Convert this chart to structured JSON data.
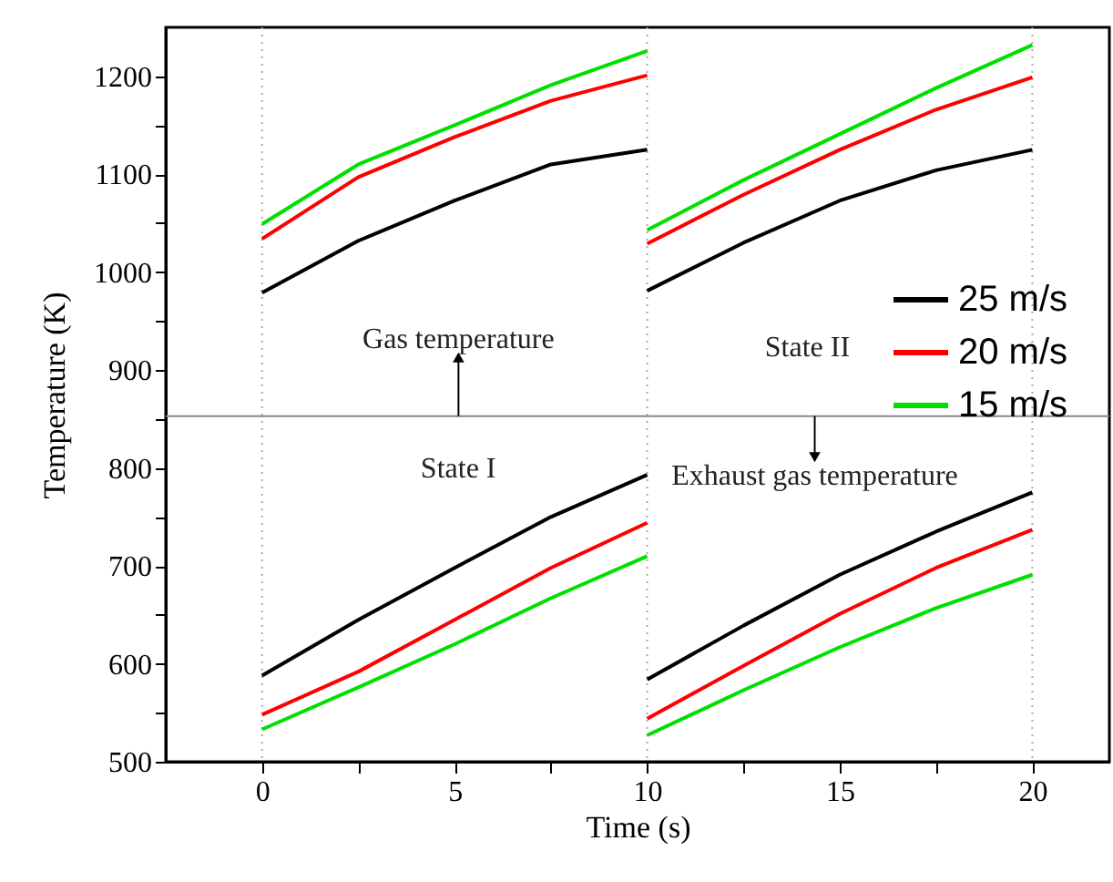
{
  "chart_data": {
    "type": "line",
    "xlabel": "Time (s)",
    "ylabel": "Temperature (K)",
    "xlim": [
      -2.5,
      22
    ],
    "ylim": [
      500,
      1250
    ],
    "xticks": [
      0,
      {
        "value": 2.5,
        "label": null
      },
      5,
      {
        "value": 7.5,
        "label": null
      },
      10,
      {
        "value": 12.5,
        "label": null
      },
      15,
      {
        "value": 17.5,
        "label": null
      },
      20
    ],
    "yticks": [
      500,
      {
        "value": 550,
        "label": null
      },
      600,
      {
        "value": 650,
        "label": null
      },
      700,
      {
        "value": 750,
        "label": null
      },
      800,
      {
        "value": 850,
        "label": null
      },
      900,
      {
        "value": 950,
        "label": null
      },
      1000,
      {
        "value": 1050,
        "label": null
      },
      1100,
      {
        "value": 1150,
        "label": null
      },
      1200
    ],
    "grid": false,
    "legend": "right",
    "series": [
      {
        "name": "25 m/s",
        "color": "#000000",
        "x": [
          0,
          2.5,
          5,
          7.5,
          10,
          null,
          10,
          12.5,
          15,
          17.5,
          20
        ],
        "values": [
          979,
          1032,
          1073,
          1110,
          1125,
          null,
          981,
          1030,
          1073,
          1104,
          1125
        ]
      },
      {
        "name": "20 m/s",
        "color": "#ff0000",
        "x": [
          0,
          2.5,
          5,
          7.5,
          10,
          null,
          10,
          12.5,
          15,
          17.5,
          20
        ],
        "values": [
          1034,
          1097,
          1138,
          1175,
          1201,
          null,
          1029,
          1079,
          1125,
          1166,
          1199
        ]
      },
      {
        "name": "15 m/s",
        "color": "#00e000",
        "x": [
          0,
          2.5,
          5,
          7.5,
          10,
          null,
          10,
          12.5,
          15,
          17.5,
          20
        ],
        "values": [
          1049,
          1110,
          1150,
          1191,
          1226,
          null,
          1043,
          1094,
          1141,
          1188,
          1232
        ]
      },
      {
        "color": "#000000",
        "x": [
          0,
          2.5,
          5,
          7.5,
          10,
          null,
          10,
          12.5,
          15,
          17.5,
          20
        ],
        "values": [
          588,
          645,
          698,
          750,
          793,
          null,
          584,
          639,
          691,
          735,
          775
        ]
      },
      {
        "color": "#ff0000",
        "x": [
          0,
          2.5,
          5,
          7.5,
          10,
          null,
          10,
          12.5,
          15,
          17.5,
          20
        ],
        "values": [
          548,
          592,
          645,
          698,
          744,
          null,
          544,
          598,
          651,
          698,
          737
        ]
      },
      {
        "color": "#00e000",
        "x": [
          0,
          2.5,
          5,
          7.5,
          10,
          null,
          10,
          12.5,
          15,
          17.5,
          20
        ],
        "values": [
          533,
          576,
          620,
          667,
          710,
          null,
          527,
          573,
          617,
          657,
          691
        ]
      }
    ],
    "ref_lines": [
      {
        "axis": "x",
        "value": 0,
        "color": "#aaaaaa",
        "line_style": "dotted"
      },
      {
        "axis": "x",
        "value": 10,
        "color": "#aaaaaa",
        "line_style": "dotted"
      },
      {
        "axis": "x",
        "value": 20,
        "color": "#aaaaaa",
        "line_style": "dotted"
      },
      {
        "axis": "y",
        "value": 853,
        "color": "#888888",
        "line_style": "solid"
      }
    ],
    "annotations": [
      {
        "text": "Gas temperature",
        "x": 5.1,
        "y": 913
      },
      {
        "text": "Exhaust gas temperature",
        "x": 14.35,
        "y": 811
      },
      "State I",
      "State II"
    ]
  }
}
